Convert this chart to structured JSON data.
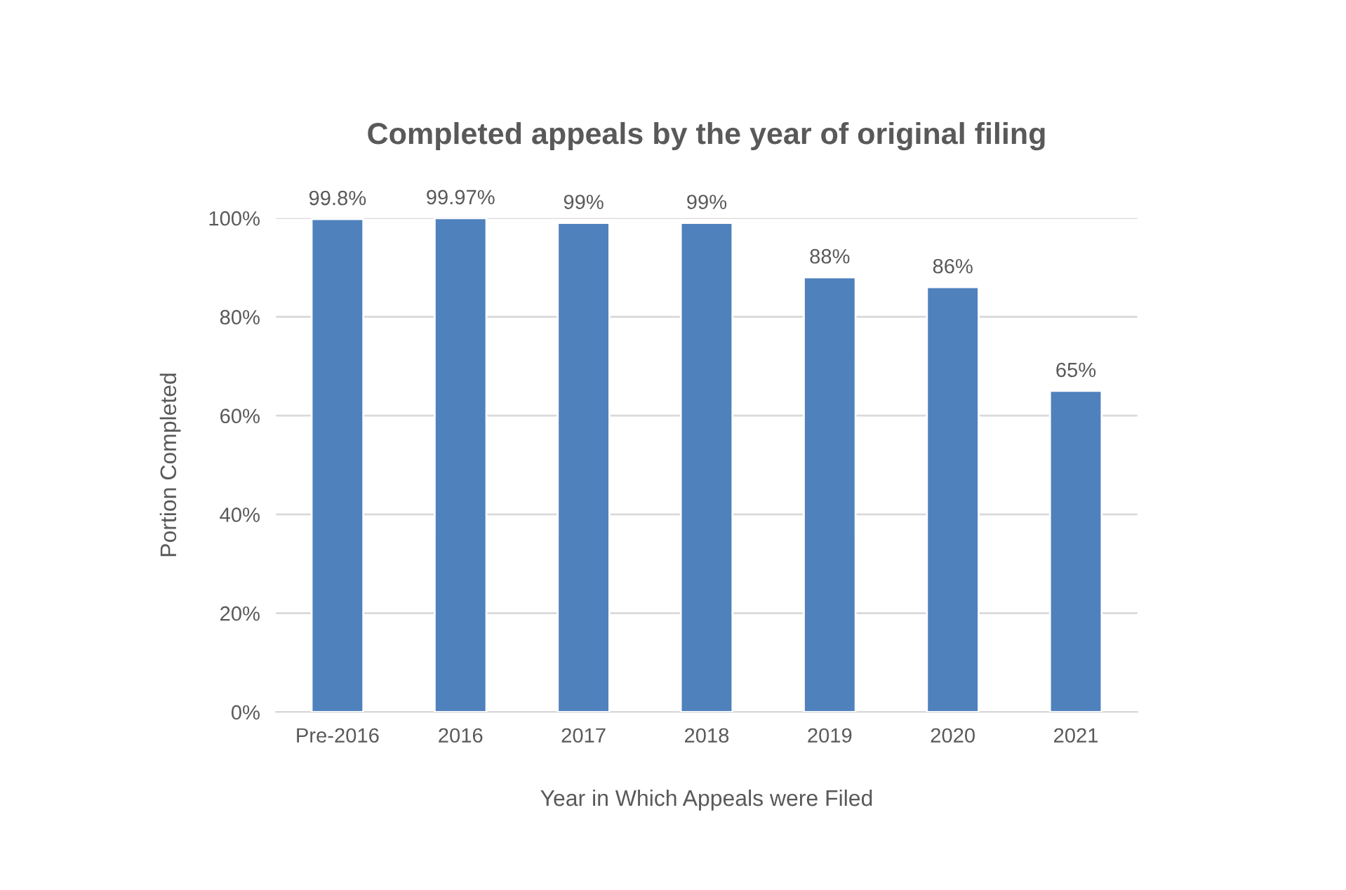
{
  "chart_data": {
    "type": "bar",
    "title": "Completed appeals by the year of original filing",
    "xlabel": "Year in Which Appeals were Filed",
    "ylabel": "Portion Completed",
    "categories": [
      "Pre-2016",
      "2016",
      "2017",
      "2018",
      "2019",
      "2020",
      "2021"
    ],
    "series": [
      {
        "color": "#4f81bd",
        "values": [
          99.8,
          99.97,
          99,
          99,
          88,
          86,
          65
        ],
        "value_labels": [
          "99.8%",
          "99.97%",
          "99%",
          "99%",
          "88%",
          "86%",
          "65%"
        ]
      }
    ],
    "ylim": [
      0,
      100
    ],
    "yticks": [
      {
        "value": 0,
        "label": "0%"
      },
      {
        "value": 20,
        "label": "20%"
      },
      {
        "value": 40,
        "label": "40%"
      },
      {
        "value": 60,
        "label": "60%"
      },
      {
        "value": 80,
        "label": "80%"
      },
      {
        "value": 100,
        "label": "100%"
      }
    ],
    "grid": "y"
  }
}
